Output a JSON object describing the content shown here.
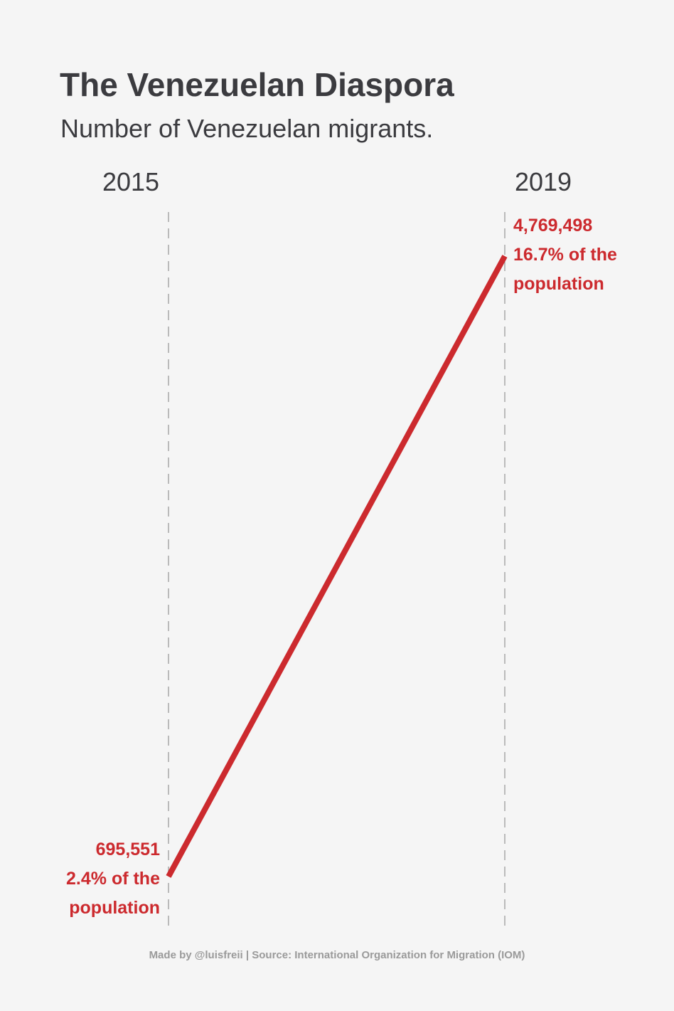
{
  "header": {
    "title": "The Venezuelan Diaspora",
    "subtitle": "Number of Venezuelan migrants."
  },
  "chart_data": {
    "type": "line",
    "title": "The Venezuelan Diaspora",
    "subtitle": "Number of Venezuelan migrants.",
    "categories": [
      "2015",
      "2019"
    ],
    "series": [
      {
        "name": "Venezuelan migrants",
        "values": [
          695551,
          4769498
        ],
        "color": "#cc2a2e"
      }
    ],
    "labels": [
      {
        "year": "2015",
        "value_text": "695,551",
        "share_line1": "2.4% of the",
        "share_line2": "population"
      },
      {
        "year": "2019",
        "value_text": "4,769,498",
        "share_line1": "16.7% of the",
        "share_line2": "population"
      }
    ],
    "ylim": [
      695551,
      4769498
    ],
    "grid": "vertical dashed lines at each year",
    "legend": "none"
  },
  "colors": {
    "background": "#f5f5f5",
    "line": "#cc2a2e",
    "text": "#3b3b3f",
    "grid": "#9a9a9a",
    "footer": "#9a9a9a"
  },
  "footer": {
    "credit": "Made by @luisfreii | Source: International Organization for Migration (IOM)"
  }
}
